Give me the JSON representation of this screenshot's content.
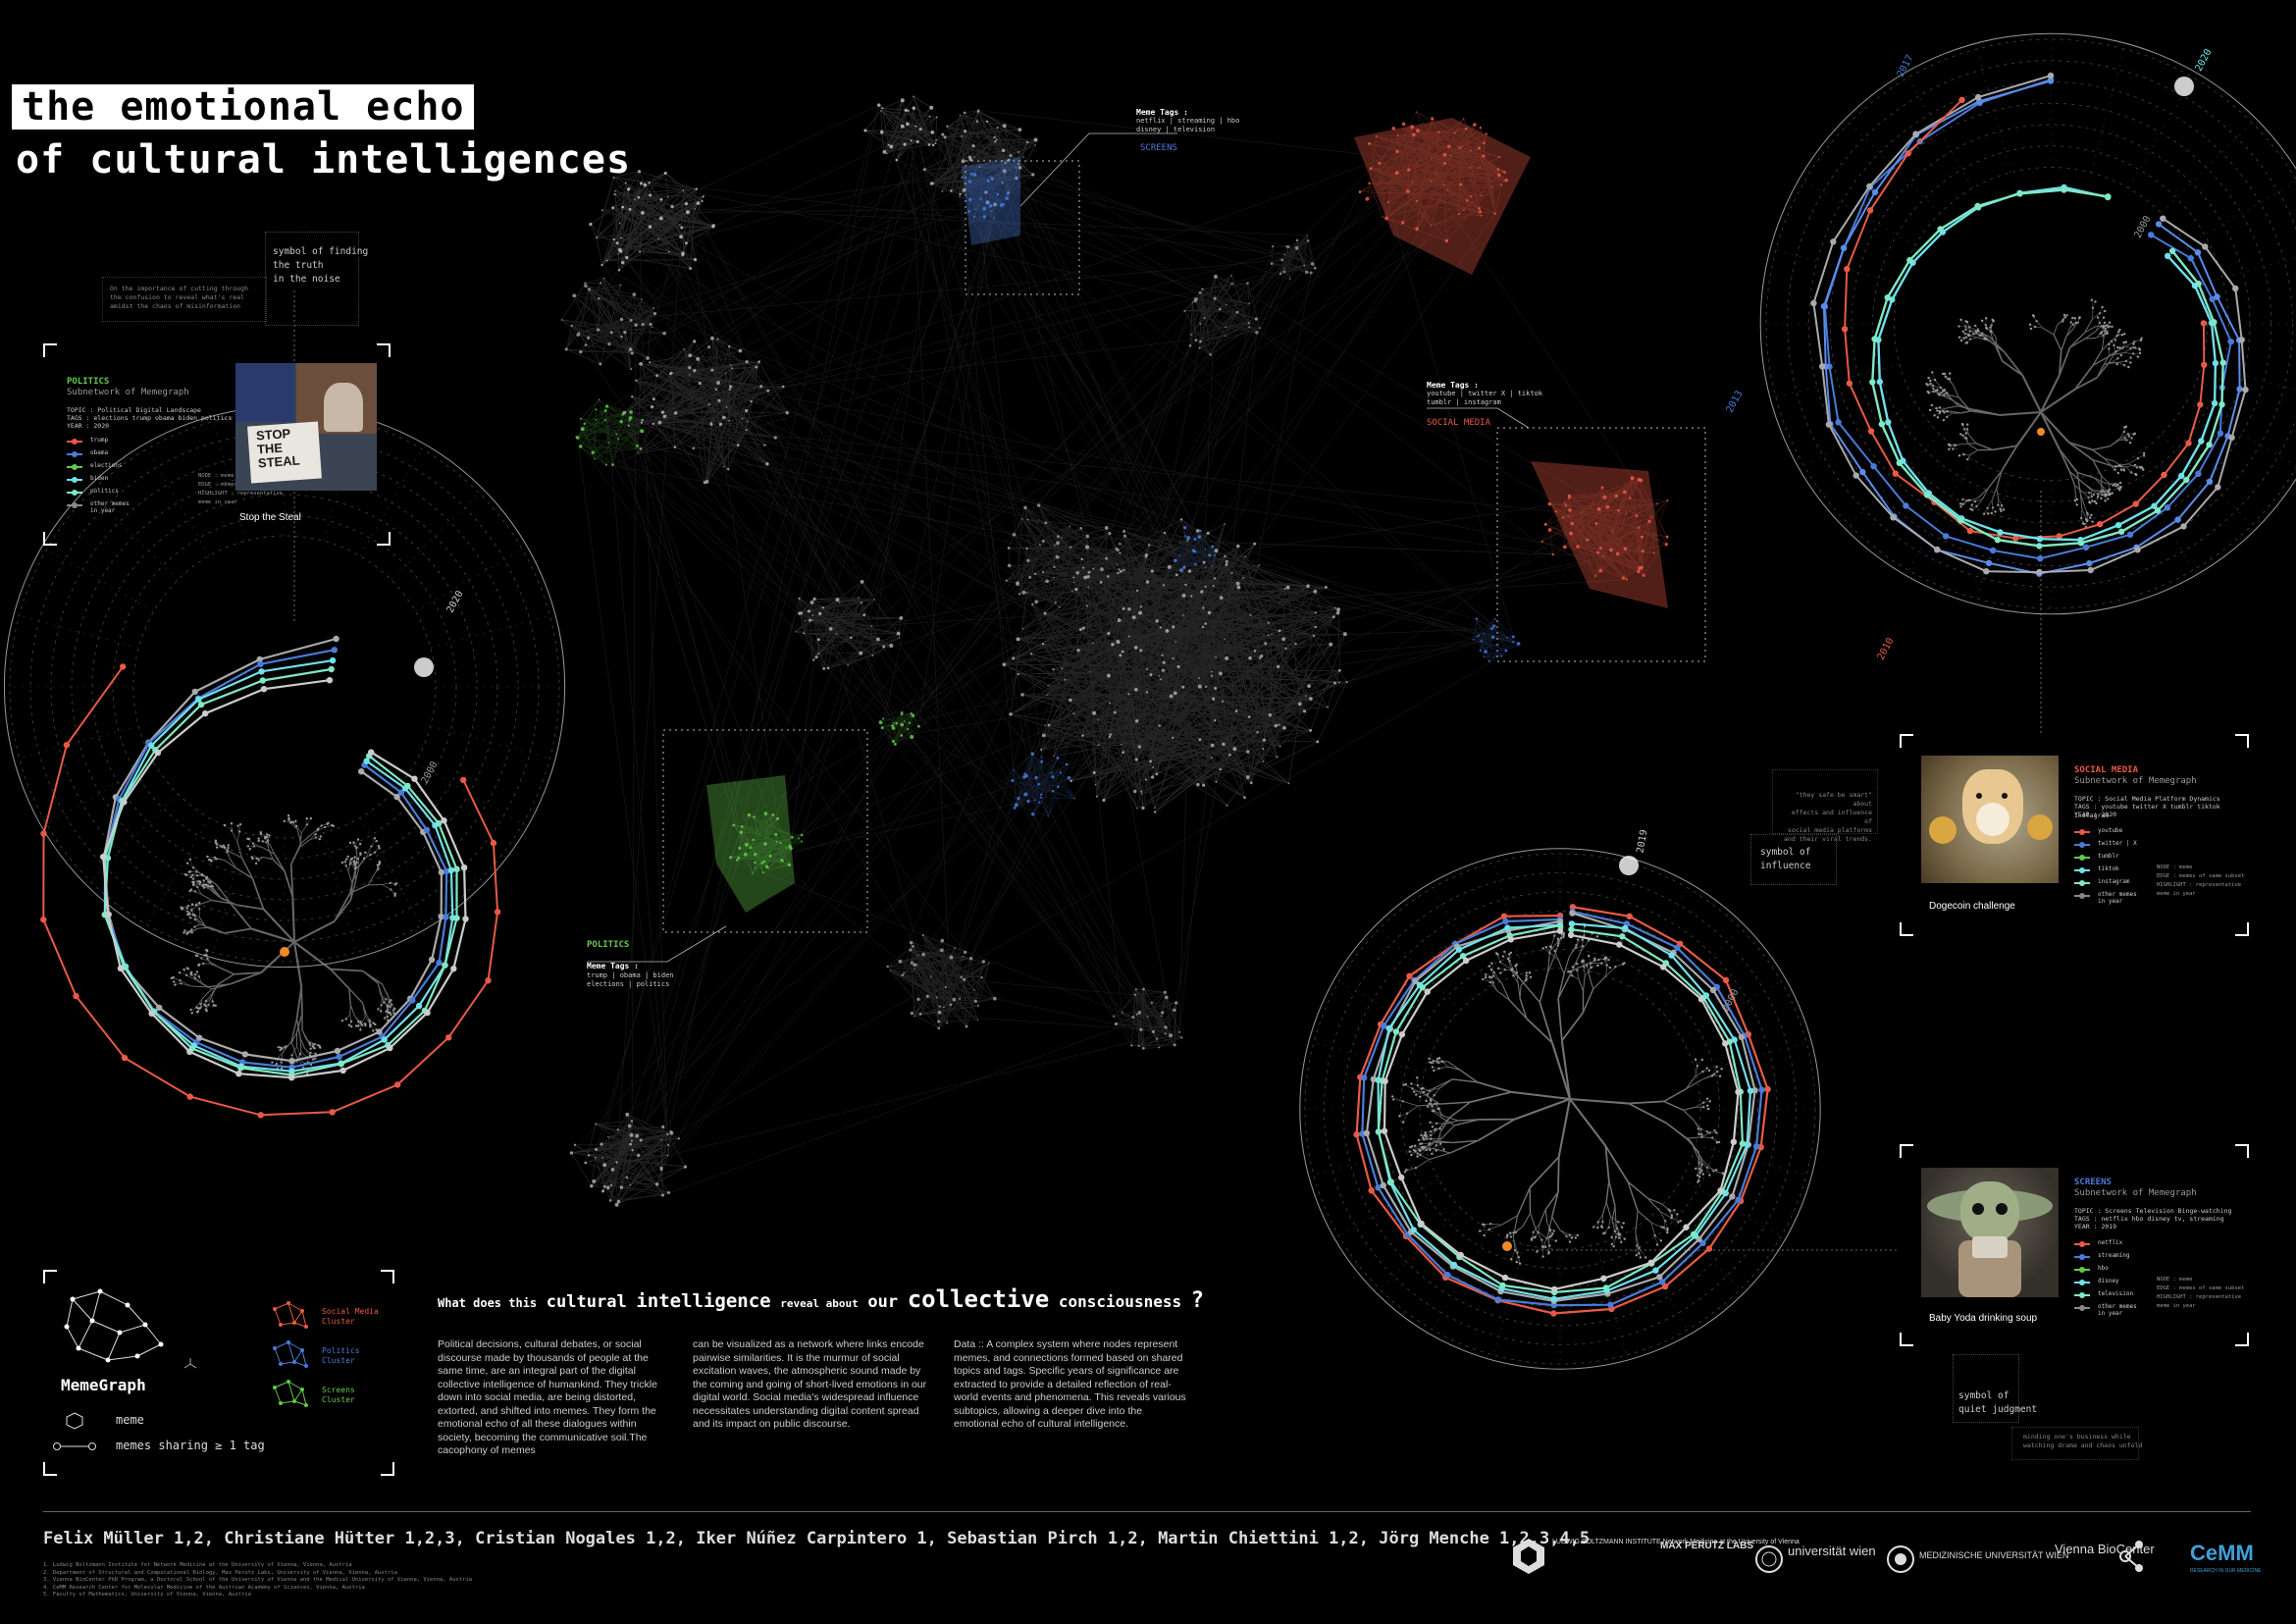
{
  "title": {
    "line1": "the emotional echo",
    "line2": "of cultural intelligences"
  },
  "symbol_truth": {
    "label": "symbol of finding\nthe truth\nin the noise",
    "note": "On the importance of cutting through\nthe confusion to reveal what's real\namidst the chaos of misinformation"
  },
  "politics_panel": {
    "category": "POLITICS",
    "subtitle": "Subnetwork of Memegraph",
    "topic": "TOPIC  :  Political Digital Landscape",
    "tags": "TAGS    :  elections trump obama biden politics",
    "year": "YEAR    :  2020",
    "legend": [
      "trump",
      "obama",
      "elections",
      "biden",
      "politics",
      "other memes\nin year"
    ],
    "key_node": "NODE : meme",
    "key_edge": "EDGE : memes of same subset",
    "key_highlight": "HIGHLIGHT : representative\nmeme in year",
    "photo_caption": "Stop the Steal",
    "sign_text": "STOP\nTHE\nSTEAL"
  },
  "social_panel": {
    "category": "SOCIAL MEDIA",
    "subtitle": "Subnetwork of Memegraph",
    "topic": "TOPIC  :  Social Media Platform Dynamics",
    "tags": "TAGS    :  youtube twitter X tumblr tiktok instagram",
    "year": "YEAR    :  2020",
    "legend": [
      "youtube",
      "twitter | X",
      "tumblr",
      "tiktok",
      "instagram",
      "other memes\nin year"
    ],
    "key_node": "NODE : meme",
    "key_edge": "EDGE : memes of same subset",
    "key_highlight": "HIGHLIGHT : representative\nmeme in year",
    "photo_caption": "Dogecoin challenge",
    "symbol": "symbol of\ninfluence",
    "quote": "\"they safe be smart\" about\neffects and influence of\nsocial media platforms\nand their viral trends."
  },
  "screens_panel": {
    "category": "SCREENS",
    "subtitle": "Subnetwork of Memegraph",
    "topic": "TOPIC  :  Screens Television Binge-watching",
    "tags": "TAGS    :  netflix hbo disney tv, streaming",
    "year": "YEAR    :  2019",
    "legend": [
      "netflix",
      "streaming",
      "hbo",
      "disney",
      "television",
      "other memes\nin year"
    ],
    "key_node": "NODE : meme",
    "key_edge": "EDGE : memes of same subset",
    "key_highlight": "HIGHLIGHT : representative\nmeme in year",
    "photo_caption": "Baby Yoda drinking soup",
    "symbol": "symbol of\nquiet judgment",
    "note": "minding one's business while\nwatching drama and chaos unfold"
  },
  "network_labels": {
    "screens_tags_title": "Meme Tags :",
    "screens_tags": "netflix | streaming | hbo\ndisney | television",
    "screens": "SCREENS",
    "social_tags_title": "Meme Tags :",
    "social_tags": "youtube | twitter X | tiktok\ntumblr | instagram",
    "social": "SOCIAL MEDIA",
    "politics": "POLITICS",
    "politics_tags_title": "Meme Tags :",
    "politics_tags": "trump | obama | biden\nelections | politics"
  },
  "radial_years": {
    "left_outer": "2020",
    "left_inner": "2000",
    "topright_2017": "2017",
    "topright_2020": "2020",
    "topright_2013": "2013",
    "topright_2010": "2010",
    "topright_2000": "2000",
    "bottom_2019": "2019",
    "bottom_2000": "2000"
  },
  "legend_box": {
    "social": "Social Media\nCluster",
    "politics": "Politics\nCluster",
    "screens": "Screens\nCluster",
    "memegraph": "MemeGraph",
    "meme": "meme",
    "sharing": "memes sharing ≥ 1 tag"
  },
  "question": {
    "part1": "What does this",
    "part2": "cultural",
    "part3": "intelligence",
    "part4": "reveal about",
    "part5": "our",
    "part6": "collective",
    "part7": "consciousness",
    "part8": "?"
  },
  "body_text": {
    "col1": "Political decisions, cultural debates, or social discourse made by thousands of people at the same time, are an integral part of the digital collective intelligence of humankind.\n\nThey trickle down into social media, are being distorted, extorted, and shifted into memes. They form the emotional echo of all these dialogues within society, becoming the communicative soil.The cacophony of memes",
    "col2": "can be visualized as a network where links encode pairwise similarities.\n  It is the murmur of social excitation waves, the atmospheric sound made by the coming and going of short-lived emotions in our digital world.\n\nSocial media's widespread influence necessitates understanding digital content spread and its impact on public discourse.",
    "col3": "Data :: A complex system where nodes represent memes, and connections formed based on shared topics and tags. Specific years of significance are extracted to provide a detailed reflection of real-world events and phenomena.\n\nThis reveals various subtopics, allowing a deeper dive into the emotional echo of cultural intelligence."
  },
  "authors": "Felix Müller 1,2, Christiane Hütter 1,2,3, Cristian Nogales 1,2, Iker Núñez Carpintero 1, Sebastian Pirch 1,2, Martin Chiettini 1,2, Jörg Menche 1,2,3,4,5",
  "affiliations": "1. Ludwig Boltzmann Institute for Network Medicine at the University of Vienna, Vienna, Austria\n2. Department of Structural and Computational Biology, Max Perutz Labs, University of Vienna, Vienna, Austria\n3. Vienna BioCenter PhD Program, a Doctoral School of the University of Vienna and the Medical University of Vienna, Vienna, Austria\n4. CeMM Research Center for Molecular Medicine of the Austrian Academy of Sciences, Vienna, Austria\n5. Faculty of Mathematics, University of Vienna, Vienna, Austria",
  "logos": {
    "lbi": "LUDWIG\nBOLTZMANN\nINSTITUTE\nNetwork Medicine\nat the University of Vienna",
    "maxperutz": "MAX\nPERUTZ\nLABS",
    "univie": "universität\nwien",
    "meduni": "MEDIZINISCHE\nUNIVERSITÄT WIEN",
    "vbc": "Vienna\nBioCenter",
    "cemm": "CeMM",
    "cemm_sub": "RESEARCH IN OUR MEDICINE"
  },
  "colors": {
    "red": "#e85a45",
    "blue": "#4a7bd8",
    "green": "#63c94a",
    "cyan": "#6fe0e8",
    "mint": "#7fe8c4",
    "grey": "#aaaaaa",
    "orange": "#f08a24"
  }
}
